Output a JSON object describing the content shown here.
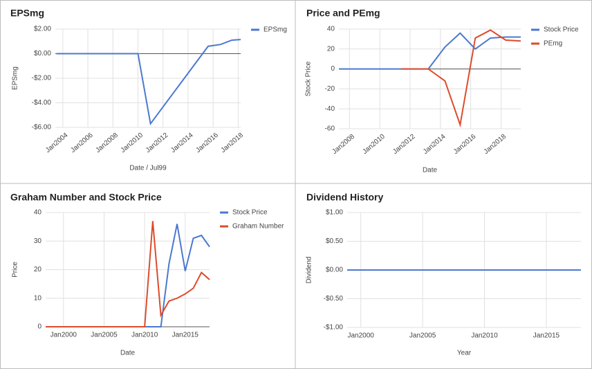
{
  "chart_data": [
    {
      "type": "line",
      "title": "EPSmg",
      "x_label": "Date / Jul99",
      "y_label": "EPSmg",
      "x": [
        2003.5,
        2010,
        2011,
        2015.6,
        2016.6,
        2017.5,
        2018.2
      ],
      "series": [
        {
          "name": "EPSmg",
          "color": "#4a78d0",
          "values": [
            0,
            0,
            -5.7,
            0.6,
            0.75,
            1.1,
            1.15
          ]
        }
      ],
      "xlim": [
        2003.4,
        2018.2
      ],
      "xticks": [
        {
          "value": 2004,
          "label": "Jan2004"
        },
        {
          "value": 2006,
          "label": "Jan2006"
        },
        {
          "value": 2008,
          "label": "Jan2008"
        },
        {
          "value": 2010,
          "label": "Jan2010"
        },
        {
          "value": 2012,
          "label": "Jan2012"
        },
        {
          "value": 2014,
          "label": "Jan2014"
        },
        {
          "value": 2016,
          "label": "Jan2016"
        },
        {
          "value": 2018,
          "label": "Jan2018"
        }
      ],
      "ylim": [
        -6,
        2
      ],
      "yticks": [
        {
          "value": 2,
          "label": "$2.00"
        },
        {
          "value": 0,
          "label": "$0.00"
        },
        {
          "value": -2,
          "label": "-$2.00"
        },
        {
          "value": -4,
          "label": "-$4.00"
        },
        {
          "value": -6,
          "label": "-$6.00"
        }
      ],
      "grid": true,
      "legend": "right"
    },
    {
      "type": "line",
      "title": "Price and PEmg",
      "x_label": "Date",
      "y_label": "Stock Price",
      "x": [
        2007.3,
        2011.4,
        2013.2,
        2014.3,
        2015.3,
        2016.3,
        2017.3,
        2018.3,
        2019.3
      ],
      "series": [
        {
          "name": "Stock Price",
          "color": "#4a78d0",
          "values": [
            0,
            0,
            0,
            22,
            36,
            20,
            31,
            32,
            32
          ]
        },
        {
          "name": "PEmg",
          "color": "#dd4b2b",
          "values": [
            null,
            0,
            0,
            -12,
            -56,
            31,
            39,
            29,
            28
          ]
        }
      ],
      "xlim": [
        2007.3,
        2019.3
      ],
      "xticks": [
        {
          "value": 2008,
          "label": "Jan2008"
        },
        {
          "value": 2010,
          "label": "Jan2010"
        },
        {
          "value": 2012,
          "label": "Jan2012"
        },
        {
          "value": 2014,
          "label": "Jan2014"
        },
        {
          "value": 2016,
          "label": "Jan2016"
        },
        {
          "value": 2018,
          "label": "Jan2018"
        }
      ],
      "ylim": [
        -60,
        40
      ],
      "yticks": [
        40,
        20,
        0,
        -20,
        -40,
        -60
      ],
      "grid": true,
      "legend": "right"
    },
    {
      "type": "line",
      "title": "Graham Number and Stock Price",
      "x_label": "Date",
      "y_label": "Price",
      "x": [
        1997.8,
        2010,
        2011,
        2012,
        2013,
        2014,
        2015,
        2016,
        2017,
        2018
      ],
      "series": [
        {
          "name": "Stock Price",
          "color": "#4a78d0",
          "values": [
            0,
            0,
            0,
            0,
            22,
            36,
            19.5,
            31,
            32,
            28
          ]
        },
        {
          "name": "Graham Number",
          "color": "#dd4b2b",
          "values": [
            0,
            0,
            37,
            4,
            9,
            10,
            11.5,
            13.5,
            19,
            16.5
          ]
        }
      ],
      "xlim": [
        1997.8,
        2018
      ],
      "xticks": [
        {
          "value": 2000,
          "label": "Jan2000"
        },
        {
          "value": 2005,
          "label": "Jan2005"
        },
        {
          "value": 2010,
          "label": "Jan2010"
        },
        {
          "value": 2015,
          "label": "Jan2015"
        }
      ],
      "ylim": [
        0,
        40
      ],
      "yticks": [
        0,
        10,
        20,
        30,
        40
      ],
      "grid": true,
      "legend": "right"
    },
    {
      "type": "line",
      "title": "Dividend History",
      "x_label": "Year",
      "y_label": "Dividend",
      "x": [
        1998.9,
        2017.8
      ],
      "series": [
        {
          "color": "#4a78d0",
          "values": [
            0,
            0
          ]
        }
      ],
      "xlim": [
        1998.9,
        2017.8
      ],
      "xticks": [
        {
          "value": 2000,
          "label": "Jan2000"
        },
        {
          "value": 2005,
          "label": "Jan2005"
        },
        {
          "value": 2010,
          "label": "Jan2010"
        },
        {
          "value": 2015,
          "label": "Jan2015"
        }
      ],
      "ylim": [
        -1,
        1
      ],
      "yticks": [
        {
          "value": 1,
          "label": "$1.00"
        },
        {
          "value": 0.5,
          "label": "$0.50"
        },
        {
          "value": 0,
          "label": "$0.00"
        },
        {
          "value": -0.5,
          "label": "-$0.50"
        },
        {
          "value": -1,
          "label": "-$1.00"
        }
      ],
      "grid": true
    }
  ]
}
